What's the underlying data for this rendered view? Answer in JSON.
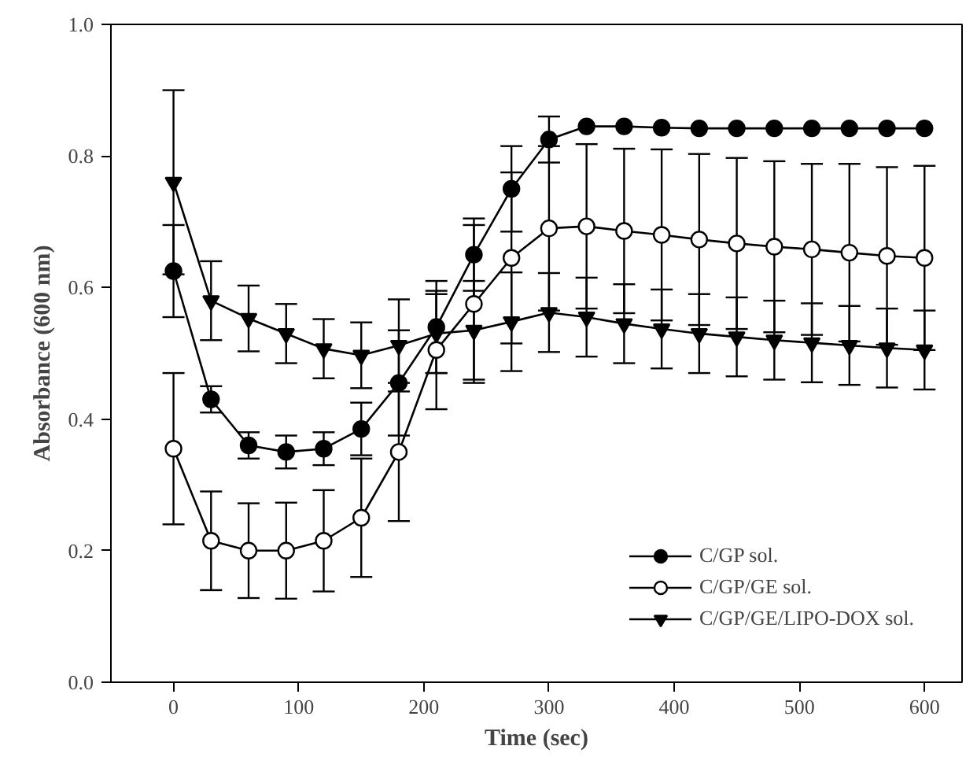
{
  "chart_data": {
    "type": "line",
    "xlabel": "Time (sec)",
    "ylabel": "Absorbance (600 nm)",
    "x": [
      0,
      30,
      60,
      90,
      120,
      150,
      180,
      210,
      240,
      270,
      300,
      330,
      360,
      390,
      420,
      450,
      480,
      510,
      540,
      570,
      600
    ],
    "xlim": [
      -50,
      630
    ],
    "xticks": [
      0,
      100,
      200,
      300,
      400,
      500,
      600
    ],
    "ylim": [
      0,
      1
    ],
    "yticks": [
      {
        "value": 0,
        "label": "0.0"
      },
      0.2,
      0.4,
      0.6,
      0.8,
      {
        "value": 1,
        "label": "1.0"
      }
    ],
    "grid": false,
    "legend": "bottom right",
    "line_style": "solid",
    "series": [
      {
        "name": "C/GP sol.",
        "color": "#000000",
        "marker": "circle",
        "values": [
          0.625,
          0.43,
          0.36,
          0.35,
          0.355,
          0.385,
          0.455,
          0.54,
          0.65,
          0.75,
          0.825,
          0.845,
          0.845,
          0.843,
          0.842,
          0.842,
          0.842,
          0.842,
          0.842,
          0.842,
          0.842
        ],
        "errors": [
          0.07,
          0.02,
          0.02,
          0.025,
          0.025,
          0.04,
          0.08,
          0.07,
          0.055,
          0.065,
          0.035,
          null,
          null,
          null,
          null,
          null,
          null,
          null,
          null,
          null,
          null
        ]
      },
      {
        "name": "C/GP/GE sol.",
        "color": "#ffffff",
        "marker": "circle",
        "values": [
          0.355,
          0.215,
          0.2,
          0.2,
          0.215,
          0.25,
          0.35,
          0.505,
          0.575,
          0.645,
          0.69,
          0.693,
          0.686,
          0.68,
          0.673,
          0.667,
          0.662,
          0.658,
          0.653,
          0.648,
          0.645
        ],
        "errors": [
          0.115,
          0.075,
          0.072,
          0.073,
          0.077,
          0.09,
          0.105,
          0.09,
          0.12,
          0.13,
          0.125,
          0.125,
          0.125,
          0.13,
          0.13,
          0.13,
          0.13,
          0.13,
          0.135,
          0.135,
          0.14
        ]
      },
      {
        "name": "C/GP/GE/LIPO-DOX sol.",
        "color": "#000000",
        "marker": "triangle",
        "values": [
          0.76,
          0.58,
          0.553,
          0.53,
          0.507,
          0.497,
          0.512,
          0.53,
          0.535,
          0.548,
          0.562,
          0.555,
          0.545,
          0.537,
          0.53,
          0.525,
          0.52,
          0.516,
          0.512,
          0.508,
          0.505
        ],
        "errors": [
          0.14,
          0.06,
          0.05,
          0.045,
          0.045,
          0.05,
          0.07,
          0.06,
          0.075,
          0.075,
          0.06,
          0.06,
          0.06,
          0.06,
          0.06,
          0.06,
          0.06,
          0.06,
          0.06,
          0.06,
          0.06
        ]
      }
    ]
  }
}
